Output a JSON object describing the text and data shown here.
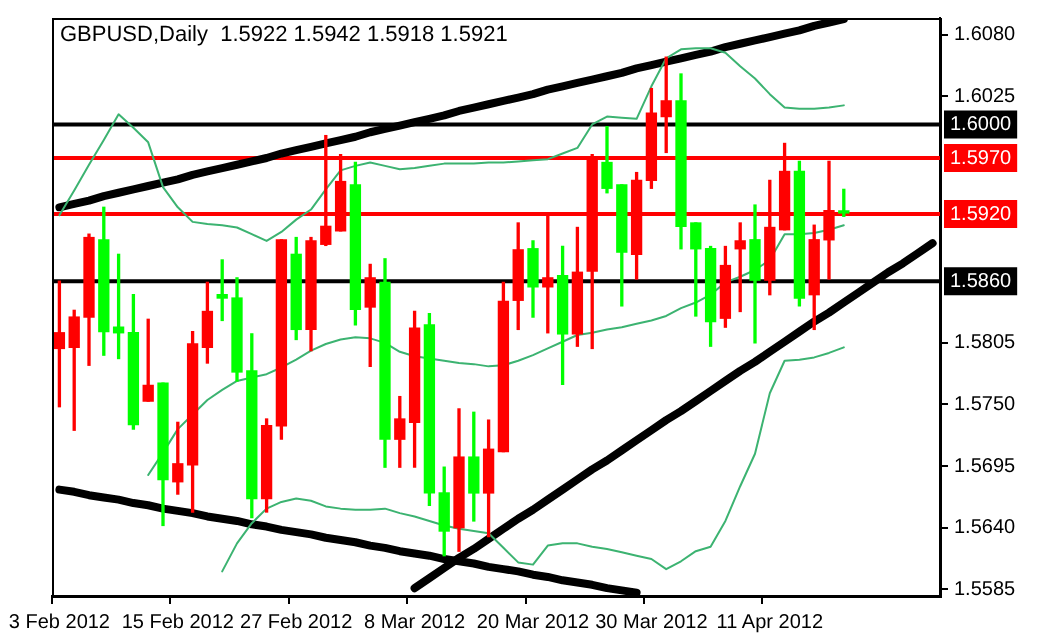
{
  "chart_data": {
    "type": "candlestick",
    "title": "GBPUSD,Daily  1.5922 1.5942 1.5918 1.5921",
    "legend": false,
    "marker": "none",
    "categories": [
      "3 Feb 2012",
      null,
      null,
      null,
      null,
      null,
      null,
      null,
      "15 Feb 2012",
      null,
      null,
      null,
      null,
      null,
      null,
      null,
      "27 Feb 2012",
      null,
      null,
      null,
      null,
      null,
      null,
      null,
      "8 Mar 2012",
      null,
      null,
      null,
      null,
      null,
      null,
      null,
      "20 Mar 2012",
      null,
      null,
      null,
      null,
      null,
      null,
      null,
      "30 Mar 2012",
      null,
      null,
      null,
      null,
      null,
      null,
      null,
      "11 Apr 2012",
      null,
      null,
      null,
      null,
      null,
      null,
      null,
      null,
      null,
      null,
      null
    ],
    "ohlc": [
      [
        1.58,
        1.586,
        1.5748,
        1.5814
      ],
      [
        1.5801,
        1.5834,
        1.5727,
        1.5828
      ],
      [
        1.5828,
        1.5902,
        1.5785,
        1.5899
      ],
      [
        1.5897,
        1.5926,
        1.5794,
        1.5815
      ],
      [
        1.5819,
        1.5884,
        1.5791,
        1.5814
      ],
      [
        1.5814,
        1.5848,
        1.5728,
        1.5732
      ],
      [
        1.5753,
        1.5826,
        1.5753,
        1.5767
      ],
      [
        1.5769,
        1.5769,
        1.5642,
        1.5683
      ],
      [
        1.5681,
        1.5734,
        1.567,
        1.5697
      ],
      [
        1.5696,
        1.5815,
        1.5654,
        1.5804
      ],
      [
        1.5801,
        1.5859,
        1.5787,
        1.5833
      ],
      [
        1.5848,
        1.5879,
        1.5825,
        1.5845
      ],
      [
        1.5845,
        1.5863,
        1.5771,
        1.5779
      ],
      [
        1.578,
        1.5813,
        1.5649,
        1.5666
      ],
      [
        1.5666,
        1.5737,
        1.5654,
        1.5731
      ],
      [
        1.5731,
        1.5897,
        1.5719,
        1.5897
      ],
      [
        1.5884,
        1.5899,
        1.5808,
        1.5817
      ],
      [
        1.5817,
        1.5899,
        1.5798,
        1.5896
      ],
      [
        1.5893,
        1.599,
        1.5892,
        1.5909
      ],
      [
        1.5905,
        1.5973,
        1.5905,
        1.5949
      ],
      [
        1.5946,
        1.5966,
        1.5821,
        1.5835
      ],
      [
        1.5837,
        1.5875,
        1.5784,
        1.5863
      ],
      [
        1.5859,
        1.588,
        1.5694,
        1.5719
      ],
      [
        1.5719,
        1.5757,
        1.5694,
        1.5737
      ],
      [
        1.5734,
        1.5833,
        1.5694,
        1.5818
      ],
      [
        1.5821,
        1.5831,
        1.566,
        1.5671
      ],
      [
        1.5671,
        1.5694,
        1.5615,
        1.5637
      ],
      [
        1.564,
        1.5746,
        1.5619,
        1.5703
      ],
      [
        1.5703,
        1.5743,
        1.5646,
        1.5671
      ],
      [
        1.5671,
        1.5736,
        1.5632,
        1.571
      ],
      [
        1.5708,
        1.5859,
        1.5708,
        1.5842
      ],
      [
        1.5843,
        1.5912,
        1.5817,
        1.5888
      ],
      [
        1.5889,
        1.5896,
        1.5828,
        1.5855
      ],
      [
        1.5855,
        1.5918,
        1.5814,
        1.5863
      ],
      [
        1.5865,
        1.5891,
        1.5768,
        1.5813
      ],
      [
        1.5813,
        1.5908,
        1.5802,
        1.5868
      ],
      [
        1.5869,
        1.5973,
        1.58,
        1.597
      ],
      [
        1.5966,
        1.5998,
        1.5939,
        1.5943
      ],
      [
        1.5946,
        1.5946,
        1.5838,
        1.5886
      ],
      [
        1.5884,
        1.5957,
        1.5862,
        1.595
      ],
      [
        1.595,
        1.6032,
        1.5943,
        1.601
      ],
      [
        1.6007,
        1.606,
        1.5975,
        1.6021
      ],
      [
        1.6021,
        1.6045,
        1.5889,
        1.5909
      ],
      [
        1.5912,
        1.5912,
        1.5829,
        1.5889
      ],
      [
        1.5889,
        1.5891,
        1.5802,
        1.5824
      ],
      [
        1.5827,
        1.5891,
        1.5819,
        1.5874
      ],
      [
        1.5889,
        1.5912,
        1.5833,
        1.5896
      ],
      [
        1.5897,
        1.5928,
        1.5805,
        1.5861
      ],
      [
        1.5861,
        1.595,
        1.5848,
        1.5908
      ],
      [
        1.5906,
        1.5983,
        1.5906,
        1.5958
      ],
      [
        1.5958,
        1.5967,
        1.5838,
        1.5845
      ],
      [
        1.5848,
        1.591,
        1.5817,
        1.5897
      ],
      [
        1.5897,
        1.5967,
        1.5862,
        1.5923
      ],
      [
        1.5922,
        1.5942,
        1.5918,
        1.5921
      ],
      null,
      null,
      null,
      null,
      null,
      null
    ],
    "colors": [
      "#ff0000",
      "#ff0000",
      "#ff0000",
      "#00ff00",
      "#00ff00",
      "#00ff00",
      "#ff0000",
      "#00ff00",
      "#ff0000",
      "#ff0000",
      "#ff0000",
      "#00ff00",
      "#00ff00",
      "#00ff00",
      "#ff0000",
      "#ff0000",
      "#00ff00",
      "#ff0000",
      "#ff0000",
      "#ff0000",
      "#00ff00",
      "#ff0000",
      "#00ff00",
      "#ff0000",
      "#ff0000",
      "#00ff00",
      "#00ff00",
      "#ff0000",
      "#00ff00",
      "#ff0000",
      "#ff0000",
      "#ff0000",
      "#00ff00",
      "#ff0000",
      "#00ff00",
      "#ff0000",
      "#ff0000",
      "#00ff00",
      "#00ff00",
      "#ff0000",
      "#ff0000",
      "#ff0000",
      "#00ff00",
      "#00ff00",
      "#00ff00",
      "#ff0000",
      "#ff0000",
      "#00ff00",
      "#ff0000",
      "#ff0000",
      "#00ff00",
      "#ff0000",
      "#ff0000",
      "#00ff00",
      null,
      null,
      null,
      null,
      null,
      null
    ],
    "series": [
      {
        "type": "line",
        "color": "#3cb371",
        "values": [
          1.5919,
          1.5941,
          1.5964,
          1.5986,
          1.6009,
          1.5997,
          1.5984,
          1.5944,
          1.5926,
          1.5913,
          1.5911,
          1.591,
          1.5908,
          1.5902,
          1.5896,
          1.5904,
          1.5915,
          1.5924,
          1.5942,
          1.5959,
          1.5963,
          1.5966,
          1.5963,
          1.596,
          1.5961,
          1.5963,
          1.5965,
          1.5965,
          1.5965,
          1.5966,
          1.5966,
          1.5967,
          1.5968,
          1.5969,
          1.5974,
          1.5979,
          1.6,
          1.6007,
          1.6006,
          1.6005,
          1.6034,
          1.6059,
          1.6067,
          1.6068,
          1.6068,
          1.6064,
          1.6052,
          1.6041,
          1.6027,
          1.6015,
          1.6014,
          1.6014,
          1.6015,
          1.6017,
          null,
          null,
          null,
          null,
          null,
          null
        ]
      },
      {
        "type": "line",
        "color": "#3cb371",
        "values": [
          null,
          null,
          null,
          null,
          null,
          null,
          1.5687,
          1.5707,
          1.5728,
          1.5741,
          1.5754,
          1.5763,
          1.5771,
          1.5774,
          1.5777,
          1.5783,
          1.579,
          1.5798,
          1.5804,
          1.5808,
          1.581,
          1.5809,
          1.5805,
          1.5797,
          1.5793,
          1.5791,
          1.5789,
          1.5787,
          1.5786,
          1.5784,
          1.5785,
          1.5789,
          1.5794,
          1.58,
          1.5806,
          1.5812,
          1.5814,
          1.5817,
          1.5819,
          1.5822,
          1.5825,
          1.5829,
          1.5836,
          1.5841,
          1.5848,
          1.5859,
          1.5864,
          1.587,
          1.5879,
          1.5902,
          1.5902,
          1.5903,
          1.5906,
          1.591,
          null,
          null,
          null,
          null,
          null,
          null
        ]
      },
      {
        "type": "line",
        "color": "#3cb371",
        "values": [
          null,
          null,
          null,
          null,
          null,
          null,
          null,
          null,
          null,
          null,
          null,
          1.5601,
          1.5626,
          1.5644,
          1.5657,
          1.5663,
          1.5666,
          1.5664,
          1.5659,
          1.5657,
          1.5656,
          1.5656,
          1.5657,
          1.5653,
          1.565,
          1.5646,
          1.5642,
          1.5639,
          1.5637,
          1.5635,
          1.5622,
          1.5609,
          1.5607,
          1.5624,
          1.5626,
          1.5626,
          1.5623,
          1.5621,
          1.5618,
          1.5615,
          1.5612,
          1.5603,
          1.561,
          1.5619,
          1.5623,
          1.5646,
          1.5677,
          1.5706,
          1.576,
          1.5789,
          1.579,
          1.5792,
          1.5796,
          1.5801,
          null,
          null,
          null,
          null,
          null,
          null
        ]
      },
      {
        "type": "line",
        "color": "#000000",
        "values": [
          1.5926,
          1.5929,
          1.5932,
          1.5936,
          1.5939,
          1.5942,
          1.5945,
          1.5948,
          1.5951,
          1.5955,
          1.5958,
          1.5961,
          1.5964,
          1.5967,
          1.597,
          1.5974,
          1.5977,
          1.598,
          1.5983,
          1.5986,
          1.5989,
          1.5993,
          1.5996,
          1.5999,
          1.6002,
          1.6005,
          1.6008,
          1.6012,
          1.6015,
          1.6018,
          1.6021,
          1.6024,
          1.6027,
          1.6031,
          1.6034,
          1.6037,
          1.604,
          1.6043,
          1.6046,
          1.605,
          1.6053,
          1.6056,
          1.6059,
          1.6062,
          1.6065,
          1.6069,
          1.6072,
          1.6075,
          1.6078,
          1.6081,
          1.6084,
          1.6088,
          1.6091,
          1.6094,
          null,
          null,
          null,
          null,
          null,
          null
        ]
      },
      {
        "type": "line",
        "color": "#000000",
        "values": [
          1.5674,
          1.5672,
          1.5669,
          1.5667,
          1.5665,
          1.5662,
          1.566,
          1.5657,
          1.5655,
          1.5653,
          1.565,
          1.5648,
          1.5646,
          1.5643,
          1.5641,
          1.5638,
          1.5636,
          1.5634,
          1.5631,
          1.5629,
          1.5627,
          1.5624,
          1.5622,
          1.5619,
          1.5617,
          1.5615,
          1.5612,
          1.561,
          1.5608,
          1.5605,
          1.5603,
          1.5601,
          1.5598,
          1.5596,
          1.5593,
          1.5591,
          1.5589,
          1.5586,
          1.5584,
          1.5582,
          null,
          null,
          null,
          null,
          null,
          null,
          null,
          null,
          null,
          null,
          null,
          null,
          null,
          null,
          null,
          null,
          null,
          null,
          null,
          null
        ]
      },
      {
        "type": "line",
        "color": "#000000",
        "values": [
          null,
          null,
          null,
          null,
          null,
          null,
          null,
          null,
          null,
          null,
          null,
          null,
          null,
          null,
          null,
          null,
          null,
          null,
          null,
          null,
          null,
          null,
          null,
          null,
          1.5586,
          1.5595,
          1.5604,
          1.5613,
          1.5621,
          1.563,
          1.5639,
          1.5648,
          1.5656,
          1.5665,
          1.5674,
          1.5683,
          1.5692,
          1.57,
          1.5709,
          1.5718,
          1.5727,
          1.5736,
          1.5744,
          1.5753,
          1.5762,
          1.5771,
          1.578,
          1.5788,
          1.5797,
          1.5806,
          1.5815,
          1.5824,
          1.5832,
          1.5841,
          1.585,
          1.5859,
          1.5868,
          1.5876,
          1.5885,
          1.5894
        ]
      }
    ],
    "ylim": [
      1.5579,
      1.6095
    ],
    "yticks": [
      {
        "value": 1.608,
        "label": "1.6080"
      },
      {
        "value": 1.6025,
        "label": "1.6025"
      },
      {
        "value": 1.5805,
        "label": "1.5805"
      },
      {
        "value": 1.575,
        "label": "1.5750"
      },
      {
        "value": 1.5695,
        "label": "1.5695"
      },
      {
        "value": 1.564,
        "label": "1.5640"
      },
      {
        "value": 1.5585,
        "label": "1.5585"
      }
    ],
    "ref_lines": [
      {
        "axis": "y",
        "value": 1.6,
        "label": "1.6000",
        "color": "#000000"
      },
      {
        "axis": "y",
        "value": 1.597,
        "label": "1.5970",
        "color": "#ff0000"
      },
      {
        "axis": "y",
        "value": 1.592,
        "label": "1.5920",
        "color": "#ff0000"
      },
      {
        "axis": "y",
        "value": 1.586,
        "label": "1.5860",
        "color": "#000000"
      }
    ]
  }
}
